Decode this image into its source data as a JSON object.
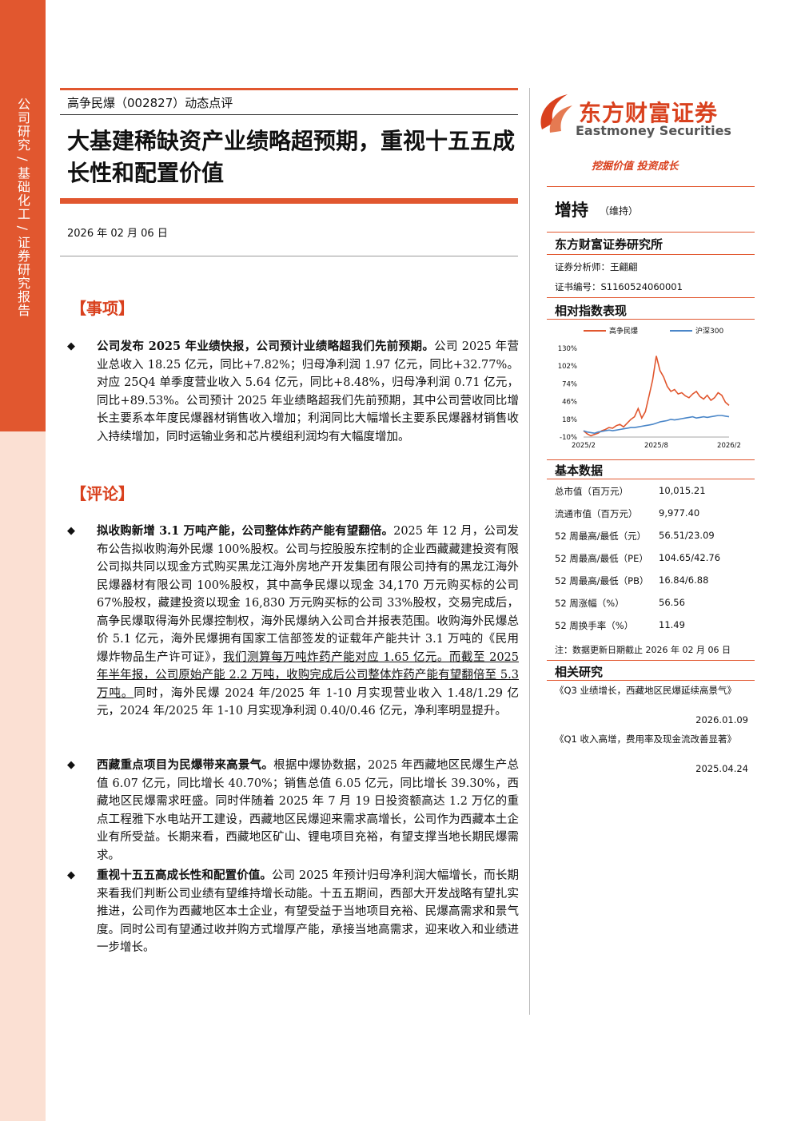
{
  "sidebar": {
    "text": "公司研究 / 基础化工 / 证券研究报告"
  },
  "header": {
    "company_line": "高争民爆（002827）动态点评",
    "title": "大基建稀缺资产业绩略超预期，重视十五五成长性和配置价值",
    "date": "2026 年 02 月 06 日"
  },
  "sections": {
    "event_head": "【事项】",
    "comment_head": "【评论】"
  },
  "event": {
    "bold": "公司发布 2025 年业绩快报，公司预计业绩略超我们先前预期。",
    "text": "公司 2025 年营业总收入 18.25 亿元，同比+7.82%；归母净利润 1.97 亿元，同比+32.77%。对应 25Q4 单季度营业收入 5.64 亿元，同比+8.48%，归母净利润 0.71 亿元，同比+89.53%。公司预计 2025 年业绩略超我们先前预期，其中公司营收同比增长主要系本年度民爆器材销售收入增加；利润同比大幅增长主要系民爆器材销售收入持续增加，同时运输业务和芯片模组利润均有大幅度增加。"
  },
  "comments": [
    {
      "bold": "拟收购新增 3.1 万吨产能，公司整体炸药产能有望翻倍。",
      "text_a": "2025 年 12 月，公司发布公告拟收购海外民爆 100%股权。公司与控股股东控制的企业西藏藏建投资有限公司拟共同以现金方式购买黑龙江海外房地产开发集团有限公司持有的黑龙江海外民爆器材有限公司 100%股权，其中高争民爆以现金 34,170 万元购买标的公司 67%股权，藏建投资以现金 16,830 万元购买标的公司 33%股权，交易完成后，高争民爆取得海外民爆控制权，海外民爆纳入公司合并报表范围。收购海外民爆总价 5.1 亿元，海外民爆拥有国家工信部签发的证载年产能共计 3.1 万吨的《民用爆炸物品生产许可证》，",
      "underline": "我们测算每万吨炸药产能对应 1.65 亿元。而截至 2025 年半年报，公司原始产能 2.2 万吨，收购完成后公司整体炸药产能有望翻倍至 5.3 万吨。",
      "text_b": "同时，海外民爆 2024 年/2025 年 1-10 月实现营业收入 1.48/1.29 亿元，2024 年/2025 年 1-10 月实现净利润 0.40/0.46 亿元，净利率明显提升。"
    },
    {
      "bold": "西藏重点项目为民爆带来高景气。",
      "text_a": "根据中爆协数据，2025 年西藏地区民爆生产总值 6.07 亿元，同比增长 40.70%；销售总值 6.05 亿元，同比增长 39.30%，西藏地区民爆需求旺盛。同时伴随着 2025 年 7 月 19 日投资额高达 1.2 万亿的重点工程雅下水电站开工建设，西藏地区民爆迎来需求高增长，公司作为西藏本土企业有所受益。长期来看，西藏地区矿山、锂电项目充裕，有望支撑当地长期民爆需求。",
      "underline": "",
      "text_b": ""
    },
    {
      "bold": "重视十五五高成长性和配置价值。",
      "text_a": "公司 2025 年预计归母净利润大幅增长，而长期来看我们判断公司业绩有望维持增长动能。十五五期间，西部大开发战略有望扎实推进，公司作为西藏地区本土企业，有望受益于当地项目充裕、民爆高需求和景气度。同时公司有望通过收并购方式增厚产能，承接当地高需求，迎来收入和业绩进一步增长。",
      "underline": "",
      "text_b": ""
    }
  ],
  "right": {
    "logo_cn": "东方财富证券",
    "logo_en": "Eastmoney Securities",
    "slogan": "挖掘价值 投资成长",
    "rating": "增持",
    "rating_sub": "（维持）",
    "institute": "东方财富证券研究所",
    "analyst": "证券分析师：王翩翩",
    "license": "证书编号：S1160524060001",
    "chart_head": "相对指数表现",
    "basic_head": "基本数据",
    "basic": [
      {
        "k": "总市值（百万元）",
        "v": "10,015.21"
      },
      {
        "k": "流通市值（百万元）",
        "v": "9,977.40"
      },
      {
        "k": "52 周最高/最低（元）",
        "v": "56.51/23.09"
      },
      {
        "k": "52 周最高/最低（PE）",
        "v": "104.65/42.76"
      },
      {
        "k": "52 周最高/最低（PB）",
        "v": "16.84/6.88"
      },
      {
        "k": "52 周涨幅（%）",
        "v": "56.56"
      },
      {
        "k": "52 周换手率（%）",
        "v": "11.49"
      }
    ],
    "note": "注：数据更新日期截止 2026 年 02 月 06 日",
    "related_head": "相关研究",
    "related": [
      {
        "title": "《Q3 业绩增长，西藏地区民爆延续高景气》",
        "date": "2026.01.09"
      },
      {
        "title": "《Q1 收入高增，费用率及现金流改善显著》",
        "date": "2025.04.24"
      }
    ]
  },
  "chart_data": {
    "type": "line",
    "legend": [
      "高争民爆",
      "沪深300"
    ],
    "colors": {
      "高争民爆": "#e1572f",
      "沪深300": "#4a86c8"
    },
    "y_ticks": [
      "130%",
      "102%",
      "74%",
      "46%",
      "18%",
      "-10%"
    ],
    "ylim": [
      -10,
      130
    ],
    "x_ticks": [
      "2025/2",
      "2025/8",
      "2026/2"
    ],
    "series": [
      {
        "name": "高争民爆",
        "values": [
          0,
          -5,
          -8,
          -6,
          -4,
          0,
          2,
          5,
          4,
          8,
          10,
          6,
          12,
          18,
          22,
          35,
          20,
          30,
          55,
          80,
          118,
          95,
          85,
          70,
          62,
          65,
          58,
          60,
          55,
          52,
          58,
          62,
          54,
          50,
          56,
          48,
          52,
          60,
          56,
          45,
          40
        ]
      },
      {
        "name": "沪深300",
        "values": [
          0,
          -2,
          -3,
          -4,
          -2,
          -1,
          0,
          1,
          0,
          1,
          2,
          3,
          4,
          5,
          5,
          6,
          7,
          8,
          9,
          10,
          12,
          14,
          15,
          16,
          18,
          17,
          18,
          19,
          20,
          21,
          22,
          20,
          21,
          22,
          21,
          22,
          23,
          24,
          24,
          23,
          22
        ]
      }
    ]
  }
}
